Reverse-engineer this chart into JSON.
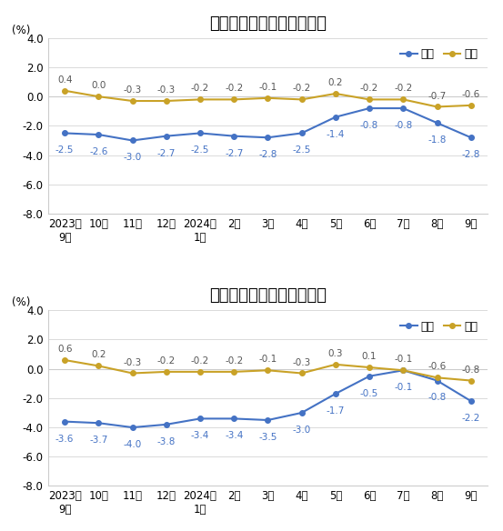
{
  "title1": "工业生产者出厂价格涨跌幅",
  "title2": "工业生产者购进价格涨跌幅",
  "ylabel": "(%)",
  "legend_yoy": "同比",
  "legend_mom": "环比",
  "x_labels": [
    "2023年\n9月",
    "10月",
    "11月",
    "12月",
    "2024年\n1月",
    "2月",
    "3月",
    "4月",
    "5月",
    "6月",
    "7月",
    "8月",
    "9月"
  ],
  "chart1": {
    "yoy": [
      -2.5,
      -2.6,
      -3.0,
      -2.7,
      -2.5,
      -2.7,
      -2.8,
      -2.5,
      -1.4,
      -0.8,
      -0.8,
      -1.8,
      -2.8
    ],
    "mom": [
      0.4,
      0.0,
      -0.3,
      -0.3,
      -0.2,
      -0.2,
      -0.1,
      -0.2,
      0.2,
      -0.2,
      -0.2,
      -0.7,
      -0.6
    ]
  },
  "chart2": {
    "yoy": [
      -3.6,
      -3.7,
      -4.0,
      -3.8,
      -3.4,
      -3.4,
      -3.5,
      -3.0,
      -1.7,
      -0.5,
      -0.1,
      -0.8,
      -2.2
    ],
    "mom": [
      0.6,
      0.2,
      -0.3,
      -0.2,
      -0.2,
      -0.2,
      -0.1,
      -0.3,
      0.3,
      0.1,
      -0.1,
      -0.6,
      -0.8
    ]
  },
  "yoy_color": "#4472C4",
  "mom_color": "#C9A227",
  "ylim": [
    -8.0,
    4.0
  ],
  "yticks": [
    -8.0,
    -6.0,
    -4.0,
    -2.0,
    0.0,
    2.0,
    4.0
  ],
  "bg_color": "#FFFFFF",
  "grid_color": "#CCCCCC",
  "marker": "o",
  "markersize": 4,
  "linewidth": 1.5,
  "label_fontsize": 7.5,
  "title_fontsize": 13,
  "tick_fontsize": 8.5,
  "legend_fontsize": 9
}
